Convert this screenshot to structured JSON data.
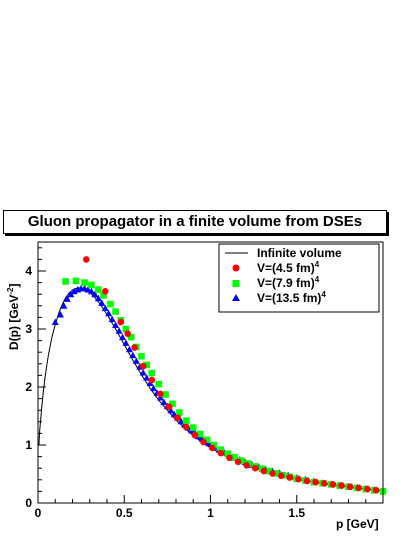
{
  "chart_data": {
    "type": "scatter",
    "title": "Gluon propagator in a finite volume from DSEs",
    "xlabel": "p [GeV]",
    "ylabel_main": "D(p) [GeV",
    "ylabel_sup": "-2",
    "ylabel_close": "]",
    "xlim": [
      0,
      2.0
    ],
    "ylim": [
      0,
      4.5
    ],
    "x_ticks": [
      0,
      0.5,
      1,
      1.5
    ],
    "x_tick_labels": [
      "0",
      "0.5",
      "1",
      "1.5"
    ],
    "y_ticks": [
      0,
      1,
      2,
      3,
      4
    ],
    "y_tick_labels": [
      "0",
      "1",
      "2",
      "3",
      "4"
    ],
    "grid": false,
    "legend_position": "top-right",
    "series": [
      {
        "name": "Infinite volume",
        "kind": "line",
        "color": "#000000",
        "x": [
          0.005,
          0.01,
          0.02,
          0.03,
          0.04,
          0.05,
          0.06,
          0.08,
          0.1,
          0.12,
          0.14,
          0.16,
          0.18,
          0.2,
          0.22,
          0.24,
          0.26,
          0.28,
          0.3,
          0.33,
          0.36,
          0.4,
          0.45,
          0.5,
          0.55,
          0.6,
          0.65,
          0.7,
          0.8,
          0.9,
          1.0,
          1.1,
          1.2,
          1.3,
          1.4,
          1.5,
          1.6,
          1.7,
          1.8,
          1.9,
          2.0
        ],
        "y": [
          1.0,
          1.25,
          1.6,
          1.9,
          2.15,
          2.35,
          2.55,
          2.85,
          3.08,
          3.27,
          3.42,
          3.54,
          3.62,
          3.67,
          3.7,
          3.71,
          3.7,
          3.67,
          3.63,
          3.54,
          3.43,
          3.25,
          3.0,
          2.73,
          2.46,
          2.21,
          1.98,
          1.77,
          1.43,
          1.16,
          0.95,
          0.79,
          0.66,
          0.56,
          0.48,
          0.41,
          0.36,
          0.31,
          0.27,
          0.24,
          0.21
        ]
      },
      {
        "name_main": "V=(4.5 fm)",
        "name_sup": "4",
        "kind": "circle",
        "color": "#ff0000",
        "x": [
          0.28,
          0.39,
          0.48,
          0.52,
          0.56,
          0.61,
          0.66,
          0.71,
          0.76,
          0.81,
          0.86,
          0.91,
          0.96,
          1.01,
          1.06,
          1.11,
          1.16,
          1.21,
          1.26,
          1.31,
          1.36,
          1.41,
          1.46,
          1.51,
          1.56,
          1.61,
          1.66,
          1.71,
          1.76,
          1.81,
          1.86,
          1.91,
          1.96
        ],
        "y": [
          4.2,
          3.65,
          3.12,
          2.92,
          2.68,
          2.36,
          2.12,
          1.88,
          1.66,
          1.47,
          1.31,
          1.17,
          1.05,
          0.95,
          0.86,
          0.78,
          0.71,
          0.65,
          0.6,
          0.55,
          0.51,
          0.47,
          0.44,
          0.41,
          0.38,
          0.36,
          0.34,
          0.32,
          0.3,
          0.28,
          0.26,
          0.24,
          0.22
        ]
      },
      {
        "name_main": "V=(7.9 fm)",
        "name_sup": "4",
        "kind": "square",
        "color": "#00ff00",
        "x": [
          0.16,
          0.22,
          0.27,
          0.31,
          0.35,
          0.38,
          0.42,
          0.45,
          0.48,
          0.51,
          0.54,
          0.57,
          0.6,
          0.63,
          0.66,
          0.7,
          0.74,
          0.78,
          0.82,
          0.86,
          0.9,
          0.94,
          0.98,
          1.02,
          1.06,
          1.1,
          1.14,
          1.18,
          1.22,
          1.26,
          1.3,
          1.34,
          1.38,
          1.42,
          1.46,
          1.5,
          1.55,
          1.6,
          1.65,
          1.7,
          1.75,
          1.8,
          1.85,
          1.9,
          1.95,
          2.0
        ],
        "y": [
          3.82,
          3.83,
          3.8,
          3.76,
          3.68,
          3.58,
          3.43,
          3.3,
          3.15,
          3.0,
          2.86,
          2.69,
          2.53,
          2.38,
          2.24,
          2.05,
          1.87,
          1.71,
          1.56,
          1.42,
          1.3,
          1.19,
          1.09,
          1.0,
          0.92,
          0.85,
          0.79,
          0.73,
          0.68,
          0.63,
          0.59,
          0.55,
          0.51,
          0.48,
          0.45,
          0.42,
          0.39,
          0.36,
          0.34,
          0.32,
          0.3,
          0.28,
          0.26,
          0.24,
          0.22,
          0.2
        ]
      },
      {
        "name_main": "V=(13.5 fm)",
        "name_sup": "4",
        "kind": "triangle",
        "color": "#0000ff",
        "x": [
          0.1,
          0.13,
          0.15,
          0.17,
          0.19,
          0.21,
          0.23,
          0.25,
          0.27,
          0.29,
          0.31,
          0.33,
          0.35,
          0.37,
          0.39,
          0.41,
          0.43,
          0.45,
          0.47,
          0.49,
          0.51,
          0.53,
          0.55,
          0.57,
          0.59,
          0.61,
          0.63,
          0.65,
          0.67,
          0.69,
          0.71,
          0.73,
          0.75,
          0.77,
          0.79,
          0.81,
          0.83,
          0.85,
          0.87,
          0.89,
          0.91,
          0.93,
          0.95,
          0.97,
          0.99,
          1.02,
          1.05,
          1.08,
          1.11,
          1.14,
          1.17,
          1.2,
          1.24,
          1.28,
          1.32,
          1.36,
          1.4,
          1.45,
          1.5,
          1.55,
          1.6,
          1.65,
          1.7,
          1.75,
          1.8,
          1.85,
          1.9,
          1.95
        ],
        "y": [
          3.12,
          3.25,
          3.4,
          3.52,
          3.6,
          3.65,
          3.68,
          3.7,
          3.7,
          3.68,
          3.65,
          3.6,
          3.53,
          3.45,
          3.36,
          3.27,
          3.17,
          3.07,
          2.97,
          2.86,
          2.76,
          2.65,
          2.55,
          2.45,
          2.35,
          2.25,
          2.16,
          2.07,
          1.98,
          1.9,
          1.82,
          1.74,
          1.67,
          1.6,
          1.53,
          1.47,
          1.41,
          1.35,
          1.3,
          1.25,
          1.2,
          1.15,
          1.11,
          1.07,
          1.03,
          0.97,
          0.92,
          0.87,
          0.83,
          0.78,
          0.75,
          0.71,
          0.66,
          0.62,
          0.58,
          0.55,
          0.52,
          0.48,
          0.44,
          0.41,
          0.38,
          0.35,
          0.33,
          0.31,
          0.29,
          0.27,
          0.25,
          0.23
        ]
      }
    ]
  }
}
